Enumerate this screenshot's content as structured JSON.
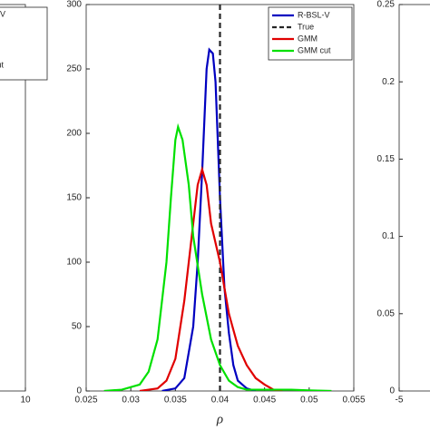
{
  "chart_data": [
    {
      "type": "line",
      "xticks": [
        10
      ],
      "series": [
        {
          "name": "L-V",
          "color": "#0000c0"
        },
        {
          "name": "cut",
          "color": "#00e000"
        }
      ]
    },
    {
      "type": "line",
      "xlabel": "ρ",
      "xlim": [
        0.025,
        0.055
      ],
      "xticks": [
        0.025,
        0.03,
        0.035,
        0.04,
        0.045,
        0.05,
        0.055
      ],
      "ylim": [
        0,
        300
      ],
      "yticks": [
        0,
        50,
        100,
        150,
        200,
        250,
        300
      ],
      "legend": "upper right",
      "series": [
        {
          "name": "R-BSL-V",
          "color": "#0000c0",
          "x": [
            0.0335,
            0.035,
            0.036,
            0.037,
            0.0375,
            0.038,
            0.0385,
            0.0388,
            0.0392,
            0.0395,
            0.04,
            0.0405,
            0.041,
            0.0415,
            0.042,
            0.043,
            0.044
          ],
          "values": [
            0,
            2,
            10,
            50,
            100,
            170,
            250,
            265,
            262,
            240,
            150,
            80,
            45,
            20,
            8,
            2,
            0
          ]
        },
        {
          "name": "True",
          "color": "#262626",
          "dash": true,
          "x": [
            0.04,
            0.04
          ],
          "values": [
            0,
            300
          ]
        },
        {
          "name": "GMM",
          "color": "#e00000",
          "x": [
            0.031,
            0.033,
            0.034,
            0.035,
            0.036,
            0.037,
            0.0375,
            0.038,
            0.0385,
            0.039,
            0.0395,
            0.04,
            0.041,
            0.042,
            0.043,
            0.044,
            0.045,
            0.046,
            0.047
          ],
          "values": [
            0,
            2,
            8,
            25,
            70,
            130,
            160,
            172,
            160,
            130,
            115,
            100,
            60,
            35,
            20,
            10,
            5,
            1,
            0
          ]
        },
        {
          "name": "GMM cut",
          "color": "#00e000",
          "x": [
            0.027,
            0.029,
            0.031,
            0.032,
            0.033,
            0.034,
            0.0345,
            0.035,
            0.0353,
            0.0358,
            0.0365,
            0.037,
            0.038,
            0.039,
            0.04,
            0.041,
            0.042,
            0.043,
            0.045,
            0.048,
            0.05,
            0.0525
          ],
          "values": [
            0,
            1,
            5,
            15,
            40,
            100,
            150,
            195,
            205,
            195,
            160,
            120,
            75,
            40,
            20,
            8,
            3,
            1,
            1,
            1,
            0.5,
            0
          ]
        }
      ]
    },
    {
      "type": "line",
      "xticks": [
        -5
      ],
      "ylim": [
        0,
        0.25
      ],
      "yticks": [
        0,
        0.05,
        0.1,
        0.15,
        0.2,
        0.25
      ]
    }
  ]
}
